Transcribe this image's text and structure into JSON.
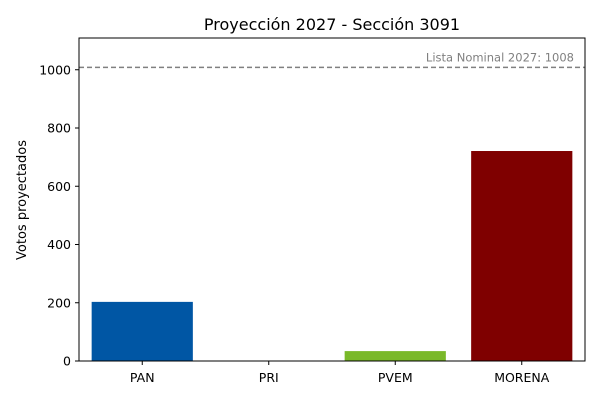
{
  "chart_data": {
    "type": "bar",
    "title": "Proyección 2027 - Sección 3091",
    "xlabel": "",
    "ylabel": "Votos proyectados",
    "categories": [
      "PAN",
      "PRI",
      "PVEM",
      "MORENA"
    ],
    "values": [
      203,
      0,
      34,
      721
    ],
    "colors": [
      "#0056A4",
      "#E3001B",
      "#7AB929",
      "#7F0000"
    ],
    "ylim": [
      0,
      1109
    ],
    "yticks": [
      0,
      200,
      400,
      600,
      800,
      1000
    ],
    "grid": false,
    "reference_line": {
      "value": 1008,
      "label": "Lista Nominal 2027: 1008",
      "color": "#808080",
      "style": "dashed"
    }
  }
}
